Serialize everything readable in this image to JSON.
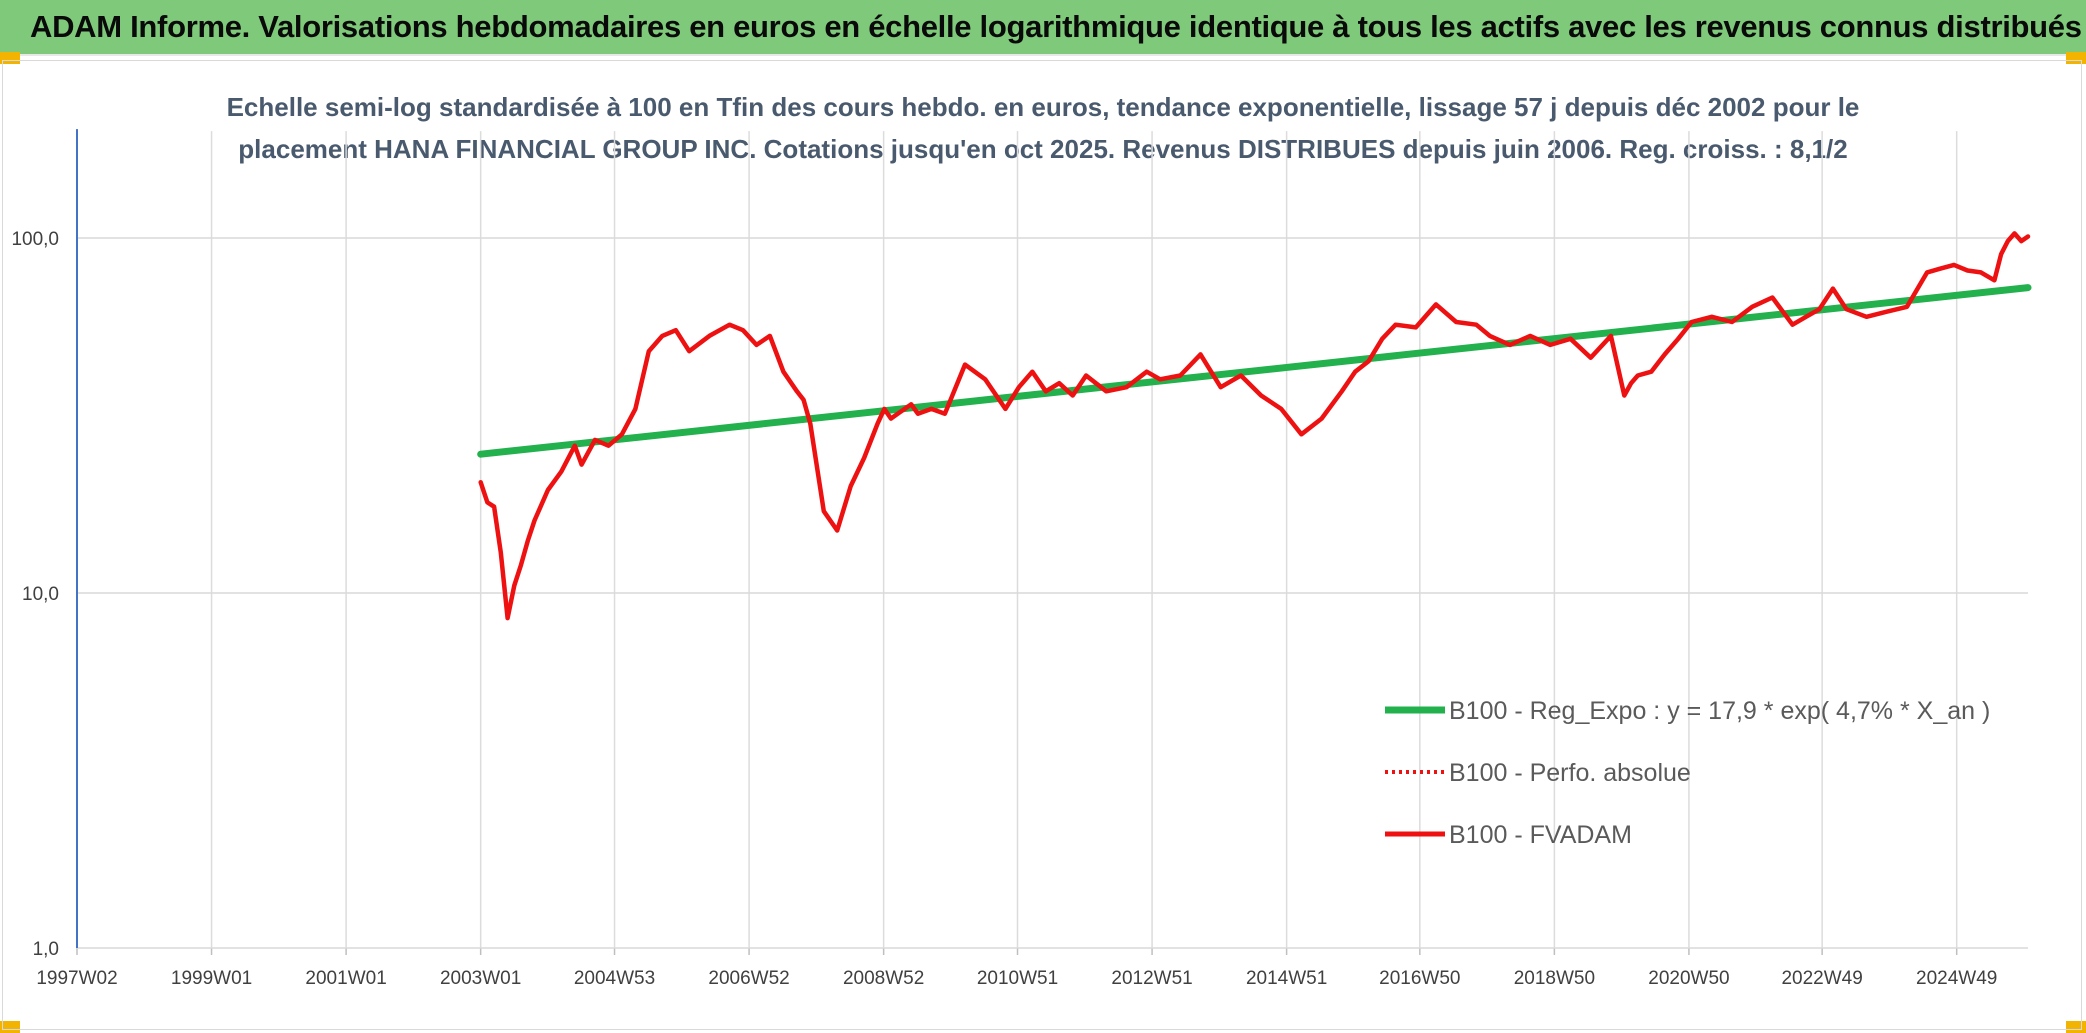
{
  "header": {
    "title": "ADAM Informe. Valorisations hebdomadaires en euros en échelle logarithmique identique à tous les actifs avec les revenus connus distribués"
  },
  "colors": {
    "banner": "#7fc97a",
    "accent_corner": "#f2b400",
    "trend": "#22b14c",
    "series": "#ee1111",
    "axis": "#4472c4",
    "grid": "#d9d9d9"
  },
  "chart_data": {
    "type": "line",
    "title_lines": [
      "Echelle semi-log standardisée à 100 en Tfin des cours hebdo. en euros, tendance exponentielle, lissage 57 j depuis déc 2002 pour le",
      "placement HANA FINANCIAL GROUP INC. Cotations jusqu'en oct 2025. Revenus DISTRIBUES depuis juin 2006. Reg. croiss. : 8,1/2"
    ],
    "y_scale": "log",
    "ylim": [
      1,
      200
    ],
    "xlim": [
      1997.0,
      2026.0
    ],
    "y_ticks": [
      {
        "value": 100,
        "label": "100,0"
      },
      {
        "value": 10,
        "label": "10,0"
      },
      {
        "value": 1,
        "label": "1,0"
      }
    ],
    "x_ticks": [
      {
        "value": 1997.0,
        "label": "1997W02"
      },
      {
        "value": 1999.0,
        "label": "1999W01"
      },
      {
        "value": 2001.0,
        "label": "2001W01"
      },
      {
        "value": 2003.0,
        "label": "2003W01"
      },
      {
        "value": 2004.99,
        "label": "2004W53"
      },
      {
        "value": 2006.99,
        "label": "2006W52"
      },
      {
        "value": 2008.99,
        "label": "2008W52"
      },
      {
        "value": 2010.98,
        "label": "2010W51"
      },
      {
        "value": 2012.98,
        "label": "2012W51"
      },
      {
        "value": 2014.98,
        "label": "2014W51"
      },
      {
        "value": 2016.96,
        "label": "2016W50"
      },
      {
        "value": 2018.96,
        "label": "2018W50"
      },
      {
        "value": 2020.96,
        "label": "2020W50"
      },
      {
        "value": 2022.94,
        "label": "2022W49"
      },
      {
        "value": 2024.94,
        "label": "2024W49"
      }
    ],
    "grid": true,
    "legend_position": "bottom-right",
    "series": [
      {
        "name": "B100 - Reg_Expo : y = 17,9 * exp( 4,7% *  X_an )",
        "style": "solid-thick",
        "color": "#22b14c",
        "x": [
          2003.0,
          2026.0
        ],
        "y": [
          24.6,
          72.5
        ]
      },
      {
        "name": "B100 - Perfo. absolue",
        "style": "dotted",
        "color": "#ee1111",
        "x": [],
        "y": []
      },
      {
        "name": "B100 - FVADAM",
        "style": "solid",
        "color": "#ee1111",
        "x": [
          2003.0,
          2003.1,
          2003.2,
          2003.3,
          2003.4,
          2003.5,
          2003.6,
          2003.7,
          2003.8,
          2004.0,
          2004.2,
          2004.4,
          2004.5,
          2004.7,
          2004.9,
          2005.1,
          2005.3,
          2005.5,
          2005.7,
          2005.9,
          2006.1,
          2006.4,
          2006.7,
          2006.9,
          2007.1,
          2007.3,
          2007.5,
          2007.7,
          2007.8,
          2007.9,
          2008.1,
          2008.3,
          2008.5,
          2008.7,
          2008.9,
          2009.0,
          2009.1,
          2009.2,
          2009.4,
          2009.5,
          2009.7,
          2009.9,
          2010.2,
          2010.5,
          2010.8,
          2011.0,
          2011.2,
          2011.4,
          2011.6,
          2011.8,
          2012.0,
          2012.3,
          2012.6,
          2012.9,
          2013.1,
          2013.4,
          2013.7,
          2014.0,
          2014.3,
          2014.6,
          2014.9,
          2015.2,
          2015.5,
          2015.8,
          2016.0,
          2016.2,
          2016.4,
          2016.6,
          2016.9,
          2017.2,
          2017.5,
          2017.8,
          2018.0,
          2018.3,
          2018.6,
          2018.9,
          2019.2,
          2019.5,
          2019.8,
          2020.0,
          2020.1,
          2020.2,
          2020.4,
          2020.6,
          2020.8,
          2021.0,
          2021.3,
          2021.6,
          2021.9,
          2022.2,
          2022.5,
          2022.7,
          2022.9,
          2023.1,
          2023.3,
          2023.6,
          2023.9,
          2024.2,
          2024.5,
          2024.7,
          2024.9,
          2025.1,
          2025.3,
          2025.5,
          2025.6,
          2025.7,
          2025.8,
          2025.9,
          2026.0
        ],
        "y": [
          20.5,
          18.0,
          17.5,
          13.0,
          8.5,
          10.5,
          12.0,
          14.0,
          16.0,
          19.5,
          22.0,
          26.0,
          23.0,
          27.0,
          26.0,
          28.0,
          33.0,
          48.0,
          53.0,
          55.0,
          48.0,
          53.0,
          57.0,
          55.0,
          50.0,
          53.0,
          42.0,
          37.0,
          35.0,
          30.0,
          17.0,
          15.0,
          20.0,
          24.0,
          30.0,
          33.0,
          31.0,
          32.0,
          34.0,
          32.0,
          33.0,
          32.0,
          44.0,
          40.0,
          33.0,
          38.0,
          42.0,
          37.0,
          39.0,
          36.0,
          41.0,
          37.0,
          38.0,
          42.0,
          40.0,
          41.0,
          47.0,
          38.0,
          41.0,
          36.0,
          33.0,
          28.0,
          31.0,
          37.0,
          42.0,
          45.0,
          52.0,
          57.0,
          56.0,
          65.0,
          58.0,
          57.0,
          53.0,
          50.0,
          53.0,
          50.0,
          52.0,
          46.0,
          53.0,
          36.0,
          39.0,
          41.0,
          42.0,
          47.0,
          52.0,
          58.0,
          60.0,
          58.0,
          64.0,
          68.0,
          57.0,
          60.0,
          63.0,
          72.0,
          63.0,
          60.0,
          62.0,
          64.0,
          80.0,
          82.0,
          84.0,
          81.0,
          80.0,
          76.0,
          90.0,
          98.0,
          103.0,
          98.0,
          101.0
        ]
      }
    ]
  }
}
